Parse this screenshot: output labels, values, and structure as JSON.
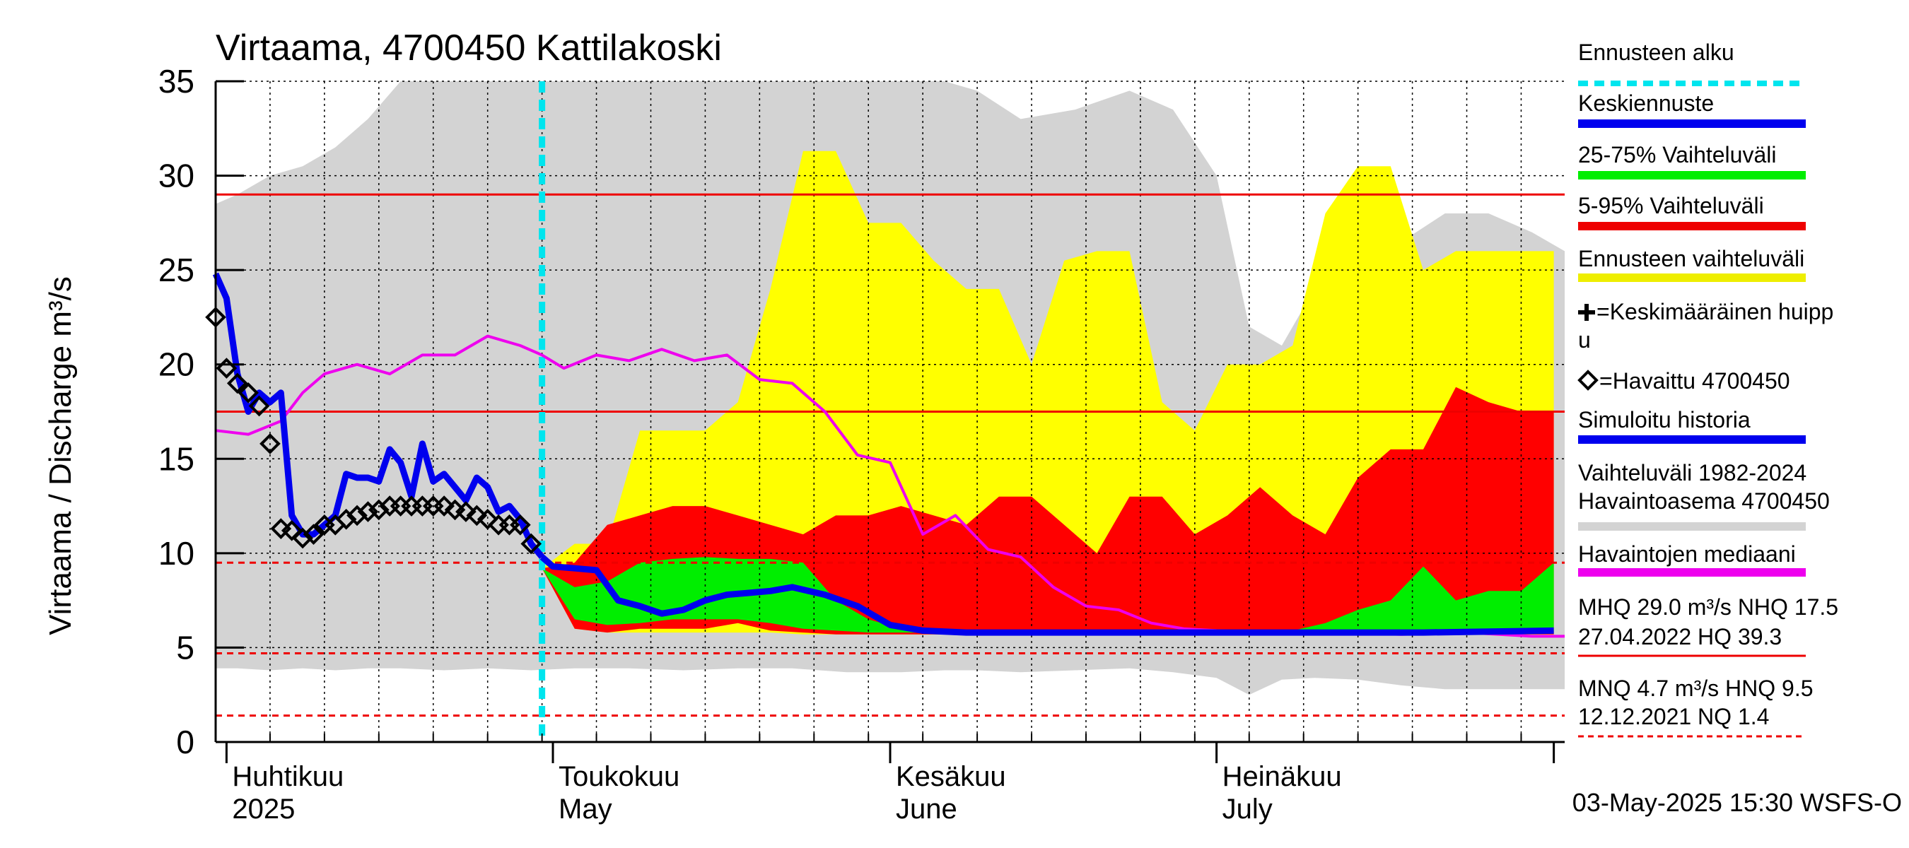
{
  "chart_data": {
    "type": "area",
    "title": "Virtaama, 4700450 Kattilakoski",
    "ylabel": "Virtaama / Discharge   m³/s",
    "ylim": [
      0,
      35
    ],
    "yticks": [
      0,
      5,
      10,
      15,
      20,
      25,
      30,
      35
    ],
    "xlim": [
      "2025-03-31",
      "2025-08-02"
    ],
    "grid": true,
    "month_labels": [
      {
        "date": "2025-04-01",
        "fi": "Huhtikuu",
        "en": "2025"
      },
      {
        "date": "2025-05-01",
        "fi": "Toukokuu",
        "en": "May"
      },
      {
        "date": "2025-06-01",
        "fi": "Kesäkuu",
        "en": "June"
      },
      {
        "date": "2025-07-01",
        "fi": "Heinäkuu",
        "en": "July"
      }
    ],
    "forecast_start": "2025-04-30",
    "reference_lines": [
      {
        "label": "MHQ",
        "value": 29.0,
        "style": "solid"
      },
      {
        "label": "NHQ",
        "value": 17.5,
        "style": "solid"
      },
      {
        "label": "HNQ",
        "value": 9.5,
        "style": "dashed"
      },
      {
        "label": "MNQ",
        "value": 4.7,
        "style": "dashed"
      },
      {
        "label": "NQ",
        "value": 1.4,
        "style": "dashed"
      }
    ],
    "series": [
      {
        "name": "Vaihteluväli 1982-2024 Havaintoasema 4700450",
        "kind": "band",
        "dates": [
          "2025-03-31",
          "2025-04-02",
          "2025-04-05",
          "2025-04-08",
          "2025-04-11",
          "2025-04-14",
          "2025-04-17",
          "2025-04-21",
          "2025-04-25",
          "2025-04-29",
          "2025-05-03",
          "2025-05-08",
          "2025-05-13",
          "2025-05-18",
          "2025-05-23",
          "2025-05-28",
          "2025-06-02",
          "2025-06-06",
          "2025-06-09",
          "2025-06-13",
          "2025-06-18",
          "2025-06-23",
          "2025-06-27",
          "2025-07-01",
          "2025-07-04",
          "2025-07-07",
          "2025-07-10",
          "2025-07-14",
          "2025-07-18",
          "2025-07-22",
          "2025-07-26",
          "2025-07-30",
          "2025-08-02"
        ],
        "low": [
          3.9,
          3.9,
          3.8,
          3.9,
          3.8,
          3.9,
          3.9,
          3.8,
          3.9,
          3.8,
          3.9,
          3.9,
          3.8,
          3.9,
          3.9,
          3.7,
          3.7,
          3.8,
          3.8,
          3.7,
          3.8,
          3.9,
          3.7,
          3.4,
          2.5,
          3.3,
          3.4,
          3.3,
          3.0,
          2.8,
          2.8,
          2.8,
          2.8
        ],
        "high": [
          28.5,
          29.0,
          30.0,
          30.5,
          31.5,
          33.0,
          35.0,
          35.0,
          35.0,
          35.0,
          35.0,
          35.0,
          35.0,
          35.0,
          35.0,
          35.0,
          35.0,
          35.0,
          34.5,
          33.0,
          33.5,
          34.5,
          33.5,
          30.0,
          22.0,
          21.0,
          24.0,
          24.0,
          26.5,
          28.0,
          28.0,
          27.0,
          26.0
        ]
      },
      {
        "name": "Ennusteen vaihteluväli",
        "kind": "band",
        "dates": [
          "2025-04-30",
          "2025-05-03",
          "2025-05-06",
          "2025-05-09",
          "2025-05-12",
          "2025-05-15",
          "2025-05-18",
          "2025-05-21",
          "2025-05-24",
          "2025-05-27",
          "2025-05-30",
          "2025-06-02",
          "2025-06-05",
          "2025-06-08",
          "2025-06-11",
          "2025-06-14",
          "2025-06-17",
          "2025-06-20",
          "2025-06-23",
          "2025-06-26",
          "2025-06-29",
          "2025-07-02",
          "2025-07-05",
          "2025-07-08",
          "2025-07-11",
          "2025-07-14",
          "2025-07-17",
          "2025-07-20",
          "2025-07-23",
          "2025-07-26",
          "2025-07-29",
          "2025-08-01"
        ],
        "low": [
          9.2,
          6.0,
          5.8,
          5.8,
          5.8,
          5.8,
          5.8,
          5.8,
          5.7,
          5.7,
          5.7,
          5.7,
          5.7,
          5.7,
          5.7,
          5.7,
          5.7,
          5.7,
          5.7,
          5.7,
          5.7,
          5.7,
          5.7,
          5.7,
          5.7,
          5.7,
          5.7,
          5.7,
          5.7,
          5.7,
          5.7,
          5.7
        ],
        "high": [
          9.2,
          10.5,
          10.5,
          16.5,
          16.5,
          16.5,
          18.0,
          24.0,
          31.3,
          31.3,
          27.5,
          27.5,
          25.5,
          24.0,
          24.0,
          20.0,
          25.5,
          26.0,
          26.0,
          18.0,
          16.5,
          20.0,
          20.0,
          21.0,
          28.0,
          30.5,
          30.5,
          25.0,
          26.0,
          26.0,
          26.0,
          26.0
        ]
      },
      {
        "name": "5-95% Vaihteluväli",
        "kind": "band",
        "dates": [
          "2025-04-30",
          "2025-05-03",
          "2025-05-06",
          "2025-05-09",
          "2025-05-12",
          "2025-05-15",
          "2025-05-18",
          "2025-05-21",
          "2025-05-24",
          "2025-05-27",
          "2025-05-30",
          "2025-06-02",
          "2025-06-05",
          "2025-06-08",
          "2025-06-11",
          "2025-06-14",
          "2025-06-17",
          "2025-06-20",
          "2025-06-23",
          "2025-06-26",
          "2025-06-29",
          "2025-07-02",
          "2025-07-05",
          "2025-07-08",
          "2025-07-11",
          "2025-07-14",
          "2025-07-17",
          "2025-07-20",
          "2025-07-23",
          "2025-07-26",
          "2025-07-29",
          "2025-08-01"
        ],
        "low": [
          9.2,
          6.0,
          5.8,
          6.0,
          6.0,
          6.0,
          6.3,
          5.9,
          5.8,
          5.7,
          5.7,
          5.7,
          5.7,
          5.7,
          5.7,
          5.7,
          5.7,
          5.7,
          5.7,
          5.7,
          5.7,
          5.7,
          5.7,
          5.7,
          5.7,
          5.7,
          5.7,
          5.7,
          5.7,
          5.7,
          5.7,
          5.7
        ],
        "high": [
          9.2,
          9.5,
          11.5,
          12.0,
          12.5,
          12.5,
          12.0,
          11.5,
          11.0,
          12.0,
          12.0,
          12.5,
          12.0,
          11.5,
          13.0,
          13.0,
          11.5,
          10.0,
          13.0,
          13.0,
          11.0,
          12.0,
          13.5,
          12.0,
          11.0,
          14.0,
          15.5,
          15.5,
          18.8,
          18.0,
          17.5,
          17.5
        ]
      },
      {
        "name": "25-75% Vaihteluväli",
        "kind": "band",
        "dates": [
          "2025-04-30",
          "2025-05-03",
          "2025-05-06",
          "2025-05-09",
          "2025-05-12",
          "2025-05-15",
          "2025-05-18",
          "2025-05-21",
          "2025-05-24",
          "2025-05-27",
          "2025-05-30",
          "2025-06-02",
          "2025-06-05",
          "2025-06-08",
          "2025-06-11",
          "2025-06-14",
          "2025-06-17",
          "2025-06-20",
          "2025-06-23",
          "2025-06-26",
          "2025-06-29",
          "2025-07-02",
          "2025-07-05",
          "2025-07-08",
          "2025-07-11",
          "2025-07-14",
          "2025-07-17",
          "2025-07-20",
          "2025-07-23",
          "2025-07-26",
          "2025-07-29",
          "2025-08-01"
        ],
        "low": [
          9.2,
          6.5,
          6.2,
          6.3,
          6.5,
          6.5,
          6.5,
          6.3,
          6.0,
          5.9,
          5.8,
          5.8,
          5.8,
          5.8,
          5.8,
          5.8,
          5.8,
          5.8,
          5.8,
          5.8,
          5.8,
          5.8,
          5.8,
          5.8,
          5.8,
          5.8,
          5.8,
          5.8,
          5.8,
          5.8,
          5.8,
          5.8
        ],
        "high": [
          9.2,
          8.2,
          8.5,
          9.5,
          9.7,
          9.8,
          9.7,
          9.7,
          9.5,
          7.5,
          6.5,
          6.0,
          5.9,
          5.9,
          5.9,
          5.9,
          5.9,
          5.9,
          5.9,
          5.9,
          5.9,
          5.9,
          5.9,
          5.9,
          6.3,
          7.0,
          7.5,
          9.3,
          7.5,
          8.0,
          8.0,
          9.5
        ]
      },
      {
        "name": "Havaintojen mediaani",
        "kind": "line",
        "dates": [
          "2025-03-31",
          "2025-04-03",
          "2025-04-06",
          "2025-04-08",
          "2025-04-10",
          "2025-04-13",
          "2025-04-16",
          "2025-04-19",
          "2025-04-22",
          "2025-04-25",
          "2025-04-28",
          "2025-04-30",
          "2025-05-02",
          "2025-05-05",
          "2025-05-08",
          "2025-05-11",
          "2025-05-14",
          "2025-05-17",
          "2025-05-20",
          "2025-05-23",
          "2025-05-26",
          "2025-05-29",
          "2025-06-01",
          "2025-06-04",
          "2025-06-07",
          "2025-06-10",
          "2025-06-13",
          "2025-06-16",
          "2025-06-19",
          "2025-06-22",
          "2025-06-25",
          "2025-06-28",
          "2025-07-01",
          "2025-07-06",
          "2025-07-12",
          "2025-07-18",
          "2025-07-24",
          "2025-07-30",
          "2025-08-02"
        ],
        "values": [
          16.5,
          16.3,
          17.0,
          18.5,
          19.5,
          20.0,
          19.5,
          20.5,
          20.5,
          21.5,
          21.0,
          20.5,
          19.8,
          20.5,
          20.2,
          20.8,
          20.2,
          20.5,
          19.2,
          19.0,
          17.5,
          15.2,
          14.8,
          11.0,
          12.0,
          10.2,
          9.8,
          8.2,
          7.2,
          7.0,
          6.3,
          6.0,
          5.9,
          5.8,
          5.8,
          5.7,
          5.8,
          5.6,
          5.6
        ]
      },
      {
        "name": "Simuloitu historia",
        "kind": "line",
        "dates": [
          "2025-03-31",
          "2025-04-01",
          "2025-04-02",
          "2025-04-03",
          "2025-04-04",
          "2025-04-05",
          "2025-04-06",
          "2025-04-07",
          "2025-04-08",
          "2025-04-09",
          "2025-04-10",
          "2025-04-11",
          "2025-04-12",
          "2025-04-13",
          "2025-04-14",
          "2025-04-15",
          "2025-04-16",
          "2025-04-17",
          "2025-04-18",
          "2025-04-19",
          "2025-04-20",
          "2025-04-21",
          "2025-04-22",
          "2025-04-23",
          "2025-04-24",
          "2025-04-25",
          "2025-04-26",
          "2025-04-27",
          "2025-04-28",
          "2025-04-29",
          "2025-04-30"
        ],
        "values": [
          24.8,
          23.5,
          19.5,
          17.5,
          18.5,
          18.0,
          18.5,
          12.0,
          11.0,
          11.0,
          11.5,
          12.0,
          14.2,
          14.0,
          14.0,
          13.8,
          15.5,
          14.8,
          13.0,
          15.8,
          13.8,
          14.2,
          13.5,
          12.8,
          14.0,
          13.5,
          12.2,
          12.5,
          11.8,
          10.5,
          9.8
        ]
      },
      {
        "name": "Keskiennuste",
        "kind": "line",
        "dates": [
          "2025-04-30",
          "2025-05-01",
          "2025-05-03",
          "2025-05-05",
          "2025-05-07",
          "2025-05-09",
          "2025-05-11",
          "2025-05-13",
          "2025-05-15",
          "2025-05-17",
          "2025-05-19",
          "2025-05-21",
          "2025-05-23",
          "2025-05-26",
          "2025-05-29",
          "2025-06-01",
          "2025-06-04",
          "2025-06-08",
          "2025-06-15",
          "2025-06-22",
          "2025-07-01",
          "2025-07-10",
          "2025-07-20",
          "2025-08-01"
        ],
        "values": [
          9.8,
          9.3,
          9.2,
          9.1,
          7.5,
          7.2,
          6.8,
          7.0,
          7.5,
          7.8,
          7.9,
          8.0,
          8.2,
          7.8,
          7.2,
          6.2,
          5.9,
          5.8,
          5.8,
          5.8,
          5.8,
          5.8,
          5.8,
          5.9
        ]
      },
      {
        "name": "=Havaittu 4700450",
        "kind": "markers",
        "dates": [
          "2025-03-31",
          "2025-04-01",
          "2025-04-02",
          "2025-04-03",
          "2025-04-04",
          "2025-04-05",
          "2025-04-06",
          "2025-04-07",
          "2025-04-08",
          "2025-04-09",
          "2025-04-10",
          "2025-04-11",
          "2025-04-12",
          "2025-04-13",
          "2025-04-14",
          "2025-04-15",
          "2025-04-16",
          "2025-04-17",
          "2025-04-18",
          "2025-04-19",
          "2025-04-20",
          "2025-04-21",
          "2025-04-22",
          "2025-04-23",
          "2025-04-24",
          "2025-04-25",
          "2025-04-26",
          "2025-04-27",
          "2025-04-28",
          "2025-04-29"
        ],
        "values": [
          22.5,
          19.8,
          19.0,
          18.5,
          17.8,
          15.8,
          11.3,
          11.2,
          10.8,
          11.0,
          11.5,
          11.5,
          11.8,
          12.0,
          12.2,
          12.3,
          12.5,
          12.5,
          12.5,
          12.5,
          12.5,
          12.5,
          12.3,
          12.2,
          12.0,
          11.8,
          11.5,
          11.5,
          11.5,
          10.5
        ]
      }
    ],
    "legend": {
      "placement": "right",
      "items": [
        {
          "label": "Ennusteen alku",
          "color": "#00e5ee",
          "style": "dashed"
        },
        {
          "label": "Keskiennuste",
          "color": "#0000ee",
          "style": "solid"
        },
        {
          "label": "25-75% Vaihteluväli",
          "color": "#00ee00",
          "style": "solid"
        },
        {
          "label": "5-95% Vaihteluväli",
          "color": "#ee0000",
          "style": "solid"
        },
        {
          "label": "Ennusteen vaihteluväli",
          "color": "#eeee00",
          "style": "solid"
        },
        {
          "label": "=Keskimääräinen huipp",
          "label2": "u",
          "marker": "plus",
          "color": "#000000"
        },
        {
          "label": "=Havaittu 4700450",
          "marker": "diamond",
          "color": "#000000"
        },
        {
          "label": "Simuloitu historia",
          "color": "#0000ee",
          "style": "solid"
        },
        {
          "label": "Vaihteluväli 1982-2024",
          "label2": " Havaintoasema 4700450",
          "color": "#d3d3d3",
          "style": "solid"
        },
        {
          "label": "Havaintojen mediaani",
          "color": "#ee00ee",
          "style": "solid"
        },
        {
          "label": "MHQ 29.0 m³/s NHQ 17.5",
          "label2": "27.04.2022 HQ 39.3",
          "color": "#ee0000",
          "style": "solid"
        },
        {
          "label": "MNQ  4.7 m³/s HNQ  9.5",
          "label2": "12.12.2021 NQ  1.4",
          "color": "#ee0000",
          "style": "dashed"
        }
      ]
    },
    "footer": "03-May-2025 15:30 WSFS-O",
    "colors": {
      "history_band": "#d3d3d3",
      "forecast_band": "#ffff00",
      "band_5_95": "#ff0000",
      "band_25_75": "#00ee00",
      "mean_forecast": "#0000ee",
      "simulated": "#0000ee",
      "median": "#ee00ee",
      "observed": "#000000",
      "forecast_start": "#00e5ee",
      "reference": "#ee0000"
    }
  }
}
